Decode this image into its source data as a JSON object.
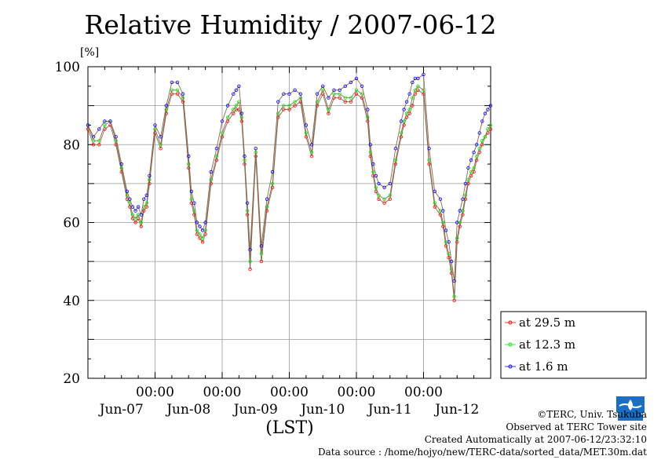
{
  "title": "Relative Humidity / 2007-06-12",
  "chart_data": {
    "type": "line",
    "ylabel": "[%]",
    "xlabel": "(LST)",
    "ylim": [
      20,
      100
    ],
    "yticks": [
      20,
      40,
      60,
      80,
      100
    ],
    "xlim": [
      0,
      144
    ],
    "xticks": [
      {
        "t": 24,
        "time": "00:00",
        "day": "Jun-08"
      },
      {
        "t": 48,
        "time": "00:00",
        "day": "Jun-09"
      },
      {
        "t": 72,
        "time": "00:00",
        "day": "Jun-10"
      },
      {
        "t": 96,
        "time": "00:00",
        "day": "Jun-11"
      },
      {
        "t": 120,
        "time": "00:00",
        "day": "Jun-12"
      }
    ],
    "day_labels": [
      {
        "t": 12,
        "label": "Jun-07"
      },
      {
        "t": 36,
        "label": "Jun-08"
      },
      {
        "t": 60,
        "label": "Jun-09"
      },
      {
        "t": 84,
        "label": "Jun-10"
      },
      {
        "t": 108,
        "label": "Jun-11"
      },
      {
        "t": 132,
        "label": "Jun-12"
      }
    ],
    "grid": true,
    "legend_position": "bottom-right",
    "series": [
      {
        "name": "at 29.5 m",
        "color": "#ff0000",
        "x": [
          0,
          2,
          4,
          6,
          8,
          10,
          12,
          14,
          15,
          16,
          17,
          18,
          19,
          20,
          21,
          22,
          24,
          26,
          28,
          30,
          32,
          34,
          36,
          37,
          38,
          39,
          40,
          41,
          42,
          44,
          46,
          48,
          50,
          52,
          53,
          54,
          55,
          56,
          57,
          58,
          60,
          62,
          64,
          66,
          68,
          70,
          72,
          74,
          76,
          78,
          80,
          82,
          84,
          86,
          88,
          90,
          92,
          94,
          96,
          98,
          100,
          101,
          102,
          103,
          104,
          106,
          108,
          110,
          112,
          113,
          114,
          115,
          116,
          117,
          118,
          120,
          122,
          124,
          126,
          127,
          128,
          129,
          130,
          131,
          132,
          133,
          134,
          135,
          136,
          137,
          138,
          139,
          140,
          141,
          142,
          143,
          144
        ],
        "y": [
          84,
          80,
          80,
          84,
          85,
          80,
          73,
          66,
          64,
          61,
          60,
          61,
          59,
          63,
          64,
          70,
          83,
          79,
          88,
          93,
          93,
          91,
          74,
          65,
          62,
          57,
          56,
          55,
          57,
          70,
          76,
          82,
          86,
          88,
          89,
          89,
          86,
          75,
          62,
          48,
          77,
          50,
          63,
          69,
          87,
          89,
          89,
          90,
          91,
          82,
          77,
          90,
          93,
          88,
          92,
          92,
          91,
          91,
          93,
          92,
          86,
          77,
          72,
          68,
          66,
          65,
          66,
          75,
          82,
          85,
          87,
          88,
          90,
          93,
          94,
          93,
          75,
          64,
          62,
          59,
          54,
          51,
          47,
          40,
          55,
          59,
          62,
          66,
          70,
          72,
          73,
          76,
          78,
          80,
          82,
          83,
          84
        ]
      },
      {
        "name": "at 12.3 m",
        "color": "#00ee00",
        "x": [
          0,
          2,
          4,
          6,
          8,
          10,
          12,
          14,
          15,
          16,
          17,
          18,
          19,
          20,
          21,
          22,
          24,
          26,
          28,
          30,
          32,
          34,
          36,
          37,
          38,
          39,
          40,
          41,
          42,
          44,
          46,
          48,
          50,
          52,
          53,
          54,
          55,
          56,
          57,
          58,
          60,
          62,
          64,
          66,
          68,
          70,
          72,
          74,
          76,
          78,
          80,
          82,
          84,
          86,
          88,
          90,
          92,
          94,
          96,
          98,
          100,
          101,
          102,
          103,
          104,
          106,
          108,
          110,
          112,
          113,
          114,
          115,
          116,
          117,
          118,
          120,
          122,
          124,
          126,
          127,
          128,
          129,
          130,
          131,
          132,
          133,
          134,
          135,
          136,
          137,
          138,
          139,
          140,
          141,
          142,
          143,
          144
        ],
        "y": [
          85,
          81,
          81,
          85,
          86,
          81,
          74,
          67,
          65,
          62,
          61,
          62,
          60,
          64,
          65,
          71,
          84,
          80,
          89,
          94,
          94,
          92,
          75,
          66,
          63,
          58,
          57,
          56,
          58,
          71,
          77,
          83,
          87,
          89,
          90,
          91,
          87,
          76,
          63,
          50,
          78,
          52,
          64,
          70,
          88,
          90,
          90,
          91,
          92,
          83,
          78,
          91,
          94,
          89,
          93,
          93,
          92,
          92,
          94,
          93,
          87,
          78,
          73,
          69,
          67,
          66,
          67,
          76,
          83,
          86,
          88,
          89,
          92,
          94,
          95,
          94,
          76,
          65,
          63,
          60,
          55,
          52,
          48,
          41,
          56,
          60,
          63,
          67,
          71,
          73,
          74,
          77,
          79,
          81,
          82,
          84,
          85
        ]
      },
      {
        "name": "at 1.6 m",
        "color": "#0000ff",
        "x": [
          0,
          2,
          4,
          6,
          8,
          10,
          12,
          14,
          15,
          16,
          17,
          18,
          19,
          20,
          21,
          22,
          24,
          26,
          28,
          30,
          32,
          34,
          36,
          37,
          38,
          39,
          40,
          41,
          42,
          44,
          46,
          48,
          50,
          52,
          53,
          54,
          55,
          56,
          57,
          58,
          60,
          62,
          64,
          66,
          68,
          70,
          72,
          74,
          76,
          78,
          80,
          82,
          84,
          86,
          88,
          90,
          92,
          94,
          96,
          98,
          100,
          101,
          102,
          103,
          104,
          106,
          108,
          110,
          112,
          113,
          114,
          115,
          116,
          117,
          118,
          120,
          122,
          124,
          126,
          127,
          128,
          129,
          130,
          131,
          132,
          133,
          134,
          135,
          136,
          137,
          138,
          139,
          140,
          141,
          142,
          143,
          144
        ],
        "y": [
          85,
          82,
          84,
          86,
          86,
          82,
          75,
          68,
          66,
          64,
          63,
          64,
          62,
          66,
          67,
          72,
          85,
          82,
          90,
          96,
          96,
          93,
          77,
          68,
          65,
          60,
          59,
          58,
          60,
          73,
          79,
          86,
          90,
          93,
          94,
          95,
          88,
          77,
          65,
          53,
          79,
          54,
          66,
          73,
          91,
          93,
          93,
          94,
          93,
          85,
          80,
          93,
          95,
          92,
          94,
          94,
          95,
          96,
          97,
          95,
          89,
          80,
          75,
          72,
          70,
          69,
          70,
          79,
          86,
          89,
          91,
          93,
          96,
          97,
          97,
          98,
          79,
          68,
          66,
          63,
          58,
          55,
          50,
          45,
          60,
          63,
          66,
          70,
          74,
          76,
          78,
          80,
          83,
          86,
          88,
          89,
          90
        ]
      }
    ]
  },
  "footer": {
    "copyright": "©TERC, Univ. Tsukuba",
    "observed": "Observed at TERC Tower site",
    "created": "Created Automatically at 2007-06-12/23:32:10",
    "source": "Data source : /home/hojyo/new/TERC-data/sorted_data/MET.30m.dat"
  },
  "logo_icon": "terc-logo-icon"
}
